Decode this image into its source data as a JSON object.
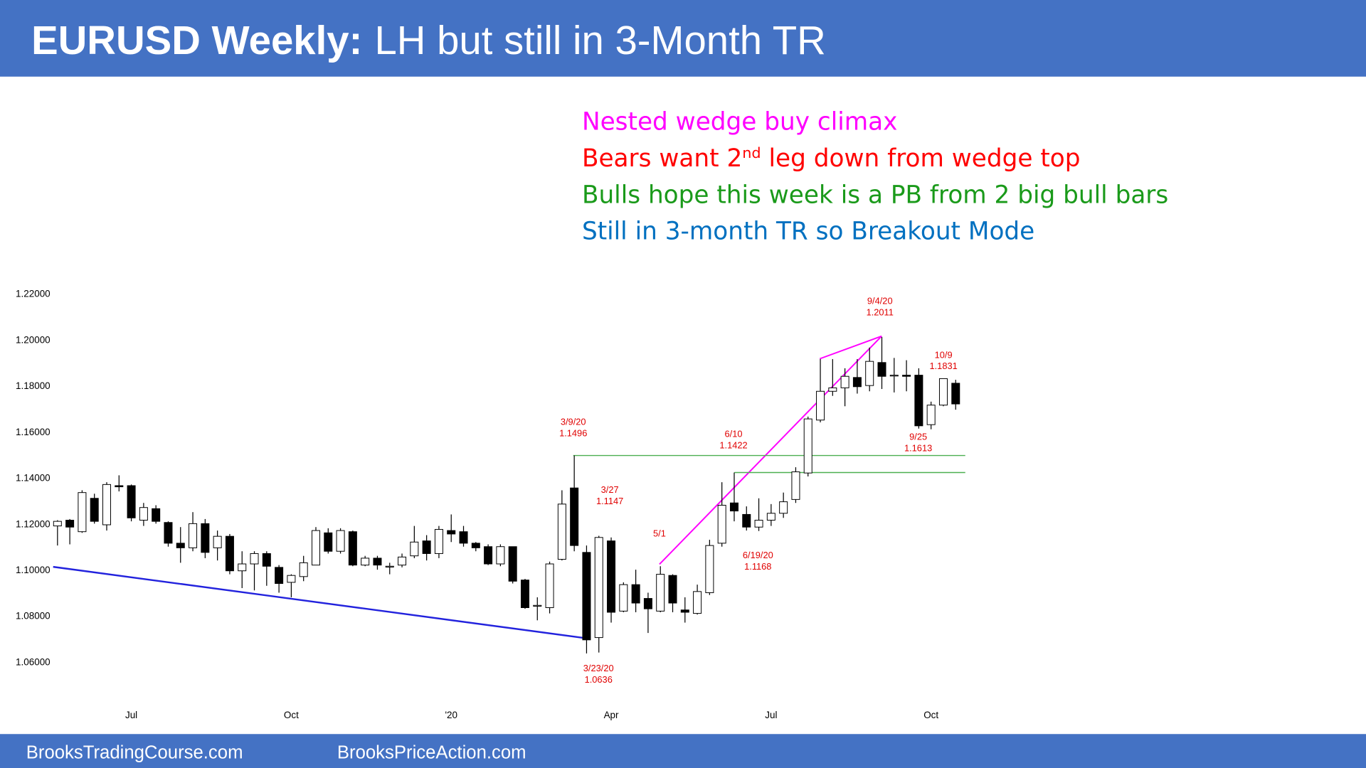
{
  "header": {
    "bold": "EURUSD Weekly:",
    "regular": "LH but still in 3-Month TR"
  },
  "notes": [
    {
      "color": "#ff00ff",
      "parts": [
        {
          "text": "Nested wedge buy climax"
        }
      ]
    },
    {
      "color": "#ff0000",
      "parts": [
        {
          "text": "Bears want 2"
        },
        {
          "text": "nd",
          "sup": true
        },
        {
          "text": " leg down from wedge top"
        }
      ]
    },
    {
      "color": "#1a9a1a",
      "parts": [
        {
          "text": "Bulls hope this week is a PB from 2 big bull bars"
        }
      ]
    },
    {
      "color": "#0070c0",
      "parts": [
        {
          "text": "Still in 3-month TR so Breakout Mode"
        }
      ]
    }
  ],
  "chart_data": {
    "type": "candlestick",
    "up_color": "#ffffff",
    "down_color": "#000000",
    "categories": [
      null,
      null,
      null,
      null,
      null,
      null,
      "Jul",
      null,
      null,
      null,
      null,
      null,
      null,
      null,
      null,
      null,
      null,
      null,
      null,
      "Oct",
      null,
      null,
      null,
      null,
      null,
      null,
      null,
      null,
      null,
      null,
      null,
      null,
      "'20",
      null,
      null,
      null,
      null,
      null,
      null,
      null,
      null,
      null,
      null,
      null,
      null,
      "Apr",
      null,
      null,
      null,
      null,
      null,
      null,
      null,
      null,
      null,
      null,
      null,
      null,
      "Jul",
      null,
      null,
      null,
      null,
      null,
      null,
      null,
      null,
      null,
      null,
      null,
      null,
      "Oct",
      null,
      null
    ],
    "open": [
      1.119,
      1.1215,
      1.1165,
      1.131,
      1.1195,
      1.1365,
      1.1365,
      1.1215,
      1.1265,
      1.1205,
      1.1115,
      1.1095,
      1.12,
      1.1095,
      1.1145,
      1.0995,
      1.1025,
      1.107,
      1.101,
      1.0945,
      1.097,
      1.102,
      1.116,
      1.108,
      1.1165,
      1.102,
      1.105,
      1.1015,
      1.102,
      1.106,
      1.1125,
      1.107,
      1.117,
      1.1165,
      1.1115,
      1.11,
      1.1025,
      1.11,
      1.0955,
      1.0845,
      1.0835,
      1.1045,
      1.1355,
      1.1075,
      1.0705,
      1.1125,
      1.082,
      1.0935,
      1.0875,
      1.082,
      1.0975,
      1.0825,
      1.081,
      1.09,
      1.1115,
      1.129,
      1.124,
      1.1185,
      1.1215,
      1.1245,
      1.1305,
      1.142,
      1.165,
      1.1775,
      1.179,
      1.1835,
      1.18,
      1.19,
      1.1845,
      1.1845,
      1.1845,
      1.163,
      1.1715,
      1.181
    ],
    "high": [
      1.1215,
      1.122,
      1.1345,
      1.133,
      1.138,
      1.141,
      1.137,
      1.129,
      1.128,
      1.121,
      1.1185,
      1.125,
      1.122,
      1.117,
      1.1155,
      1.108,
      1.108,
      1.108,
      1.102,
      1.098,
      1.106,
      1.1185,
      1.118,
      1.118,
      1.117,
      1.106,
      1.106,
      1.103,
      1.107,
      1.119,
      1.115,
      1.119,
      1.124,
      1.119,
      1.112,
      1.111,
      1.111,
      1.11,
      1.096,
      1.088,
      1.1035,
      1.1345,
      1.1496,
      1.1105,
      1.1147,
      1.114,
      1.0945,
      1.1,
      1.09,
      1.1015,
      1.098,
      1.088,
      1.0935,
      1.113,
      1.138,
      1.1422,
      1.1275,
      1.131,
      1.1285,
      1.1335,
      1.1445,
      1.1665,
      1.1915,
      1.1915,
      1.1875,
      1.1915,
      1.1965,
      1.2011,
      1.192,
      1.191,
      1.1875,
      1.173,
      1.1831,
      1.1825
    ],
    "low": [
      1.1105,
      1.111,
      1.116,
      1.12,
      1.117,
      1.134,
      1.121,
      1.119,
      1.12,
      1.11,
      1.103,
      1.108,
      1.105,
      1.104,
      1.098,
      1.092,
      1.091,
      1.093,
      1.09,
      1.088,
      1.095,
      1.102,
      1.107,
      1.107,
      1.1015,
      1.1015,
      1.1,
      1.098,
      1.101,
      1.105,
      1.104,
      1.105,
      1.112,
      1.11,
      1.108,
      1.102,
      1.1015,
      1.094,
      1.083,
      1.078,
      1.081,
      1.104,
      1.108,
      1.0636,
      1.064,
      1.077,
      1.0815,
      1.0815,
      1.0725,
      1.0815,
      1.0815,
      1.077,
      1.0805,
      1.089,
      1.11,
      1.121,
      1.117,
      1.1168,
      1.119,
      1.1225,
      1.129,
      1.1405,
      1.164,
      1.1755,
      1.171,
      1.1765,
      1.1775,
      1.1785,
      1.177,
      1.1775,
      1.1613,
      1.161,
      1.171,
      1.1695
    ],
    "close": [
      1.121,
      1.1185,
      1.1335,
      1.121,
      1.137,
      1.136,
      1.1225,
      1.127,
      1.121,
      1.1115,
      1.1095,
      1.12,
      1.1075,
      1.1145,
      1.0995,
      1.1025,
      1.107,
      1.1015,
      1.094,
      1.0975,
      1.103,
      1.117,
      1.108,
      1.117,
      1.102,
      1.105,
      1.102,
      1.1015,
      1.1055,
      1.112,
      1.107,
      1.1175,
      1.1155,
      1.1115,
      1.1095,
      1.1025,
      1.11,
      1.095,
      1.0835,
      1.0845,
      1.1025,
      1.1285,
      1.1105,
      1.0695,
      1.114,
      1.0815,
      1.0935,
      1.0855,
      1.083,
      1.098,
      1.0855,
      1.0815,
      1.0905,
      1.1105,
      1.128,
      1.1255,
      1.1185,
      1.1215,
      1.1245,
      1.1295,
      1.1425,
      1.1655,
      1.1775,
      1.179,
      1.184,
      1.1795,
      1.1905,
      1.184,
      1.1845,
      1.184,
      1.1625,
      1.1715,
      1.183,
      1.172
    ],
    "ylim": [
      1.05,
      1.23
    ],
    "yticks": [
      {
        "value": 1.06,
        "label": "1.06000"
      },
      {
        "value": 1.08,
        "label": "1.08000"
      },
      {
        "value": 1.1,
        "label": "1.10000"
      },
      {
        "value": 1.12,
        "label": "1.12000"
      },
      {
        "value": 1.14,
        "label": "1.14000"
      },
      {
        "value": 1.16,
        "label": "1.16000"
      },
      {
        "value": 1.18,
        "label": "1.18000"
      },
      {
        "value": 1.2,
        "label": "1.20000"
      },
      {
        "value": 1.22,
        "label": "1.22000"
      }
    ],
    "annotations": [
      {
        "label": "9/4/20",
        "value": 1.2011
      },
      {
        "label": "10/9",
        "value": 1.1831
      },
      {
        "label": "3/9/20",
        "value": 1.1496
      },
      {
        "label": "6/10",
        "value": 1.1422
      },
      {
        "label": "9/25",
        "value": 1.1613
      },
      {
        "label": "3/27",
        "value": 1.1147
      },
      {
        "label": "5/1"
      },
      {
        "label": "6/19/20",
        "value": 1.1168
      },
      {
        "label": "3/23/20",
        "value": 1.0636
      }
    ],
    "level_lines_color": "#4caf50"
  },
  "footer": [
    "BrooksTradingCourse.com",
    "BrooksPriceAction.com"
  ]
}
